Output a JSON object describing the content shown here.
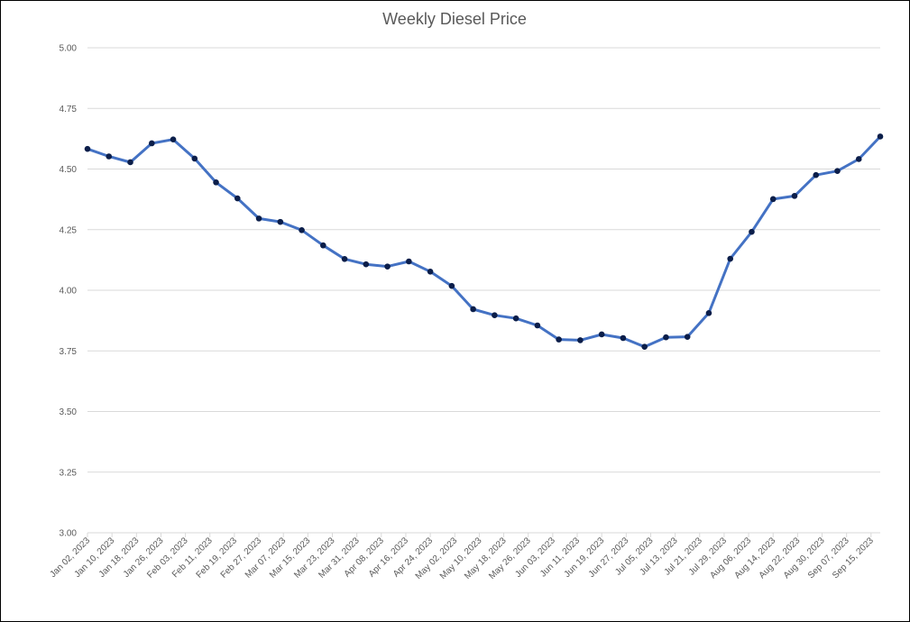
{
  "chart_data": {
    "type": "line",
    "title": "Weekly Diesel Price",
    "xlabel": "",
    "ylabel": "",
    "ylim": [
      3.0,
      5.0
    ],
    "yticks": [
      "3.00",
      "3.25",
      "3.50",
      "3.75",
      "4.00",
      "4.25",
      "4.50",
      "4.75",
      "5.00"
    ],
    "grid": true,
    "legend": "none",
    "x_tick_labels": [
      "Jan 02, 2023",
      "Jan 10, 2023",
      "Jan 18, 2023",
      "Jan 26, 2023",
      "Feb 03, 2023",
      "Feb 11, 2023",
      "Feb 19, 2023",
      "Feb 27, 2023",
      "Mar 07, 2023",
      "Mar 15, 2023",
      "Mar 23, 2023",
      "Mar 31, 2023",
      "Apr 08, 2023",
      "Apr 16, 2023",
      "Apr 24, 2023",
      "May 02, 2023",
      "May 10, 2023",
      "May 18, 2023",
      "May 26, 2023",
      "Jun 03, 2023",
      "Jun 11, 2023",
      "Jun 19, 2023",
      "Jun 27, 2023",
      "Jul 05, 2023",
      "Jul 13, 2023",
      "Jul 21, 2023",
      "Jul 29, 2023",
      "Aug 06, 2023",
      "Aug 14, 2023",
      "Aug 22, 2023",
      "Aug 30, 2023",
      "Sep 07, 2023",
      "Sep 15, 2023"
    ],
    "x": [
      "2023-01-02",
      "2023-01-09",
      "2023-01-16",
      "2023-01-23",
      "2023-01-30",
      "2023-02-06",
      "2023-02-13",
      "2023-02-20",
      "2023-02-27",
      "2023-03-06",
      "2023-03-13",
      "2023-03-20",
      "2023-03-27",
      "2023-04-03",
      "2023-04-10",
      "2023-04-17",
      "2023-04-24",
      "2023-05-01",
      "2023-05-08",
      "2023-05-15",
      "2023-05-22",
      "2023-05-29",
      "2023-06-05",
      "2023-06-12",
      "2023-06-19",
      "2023-06-26",
      "2023-07-03",
      "2023-07-10",
      "2023-07-17",
      "2023-07-24",
      "2023-07-31",
      "2023-08-07",
      "2023-08-14",
      "2023-08-21",
      "2023-08-28",
      "2023-09-04",
      "2023-09-11",
      "2023-09-18"
    ],
    "series": [
      {
        "values": [
          4.583,
          4.552,
          4.528,
          4.606,
          4.622,
          4.543,
          4.445,
          4.379,
          4.296,
          4.282,
          4.248,
          4.185,
          4.129,
          4.107,
          4.098,
          4.119,
          4.077,
          4.018,
          3.922,
          3.897,
          3.884,
          3.855,
          3.797,
          3.794,
          3.818,
          3.803,
          3.767,
          3.806,
          3.808,
          3.906,
          4.13,
          4.241,
          4.376,
          4.389,
          4.475,
          4.492,
          4.541,
          4.634
        ],
        "color": "#4472c4",
        "marker_color": "#0b1e4a"
      }
    ]
  }
}
